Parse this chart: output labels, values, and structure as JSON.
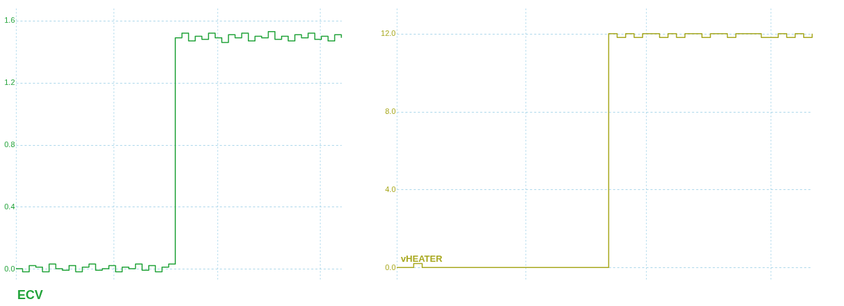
{
  "chart_data": [
    {
      "type": "step",
      "categories": [
        null,
        null,
        null,
        null,
        null,
        null,
        null,
        null,
        null,
        null,
        null,
        null,
        null,
        null,
        null,
        null,
        null,
        null,
        null,
        null,
        null,
        null,
        null,
        null,
        null,
        null,
        null,
        null,
        null,
        null,
        null,
        null,
        null,
        null,
        null,
        null,
        null,
        null,
        null,
        null,
        null,
        null,
        null,
        null,
        null,
        null,
        null,
        null,
        null,
        null
      ],
      "series": [
        {
          "name": "ECV",
          "color": "#22a33a",
          "values": [
            0.0,
            -0.02,
            0.02,
            0.01,
            -0.02,
            0.03,
            0.0,
            -0.01,
            0.02,
            -0.02,
            0.01,
            0.03,
            -0.01,
            0.0,
            0.02,
            -0.02,
            0.01,
            0.0,
            0.03,
            -0.01,
            0.02,
            -0.02,
            0.01,
            0.03,
            1.49,
            1.52,
            1.47,
            1.5,
            1.48,
            1.52,
            1.49,
            1.46,
            1.51,
            1.49,
            1.52,
            1.47,
            1.5,
            1.49,
            1.53,
            1.48,
            1.5,
            1.47,
            1.51,
            1.49,
            1.52,
            1.48,
            1.5,
            1.47,
            1.51,
            1.49
          ]
        }
      ],
      "ylim": [
        -0.08,
        1.68
      ],
      "yticks": [
        {
          "value": 0,
          "label": "0.0"
        },
        0.4,
        0.8,
        1.2,
        1.6
      ],
      "grid": true,
      "tick_labels": "y"
    },
    {
      "type": "step",
      "categories": [
        null,
        null,
        null,
        null,
        null,
        null,
        null,
        null,
        null,
        null,
        null,
        null,
        null,
        null,
        null,
        null,
        null,
        null,
        null,
        null,
        null,
        null,
        null,
        null,
        null,
        null,
        null,
        null,
        null,
        null,
        null,
        null,
        null,
        null,
        null,
        null,
        null,
        null,
        null,
        null,
        null,
        null,
        null,
        null,
        null,
        null,
        null,
        null,
        null,
        null
      ],
      "series": [
        {
          "name": "vHEATER",
          "color": "#a8a81e",
          "values": [
            0.0,
            0.0,
            0.2,
            0.0,
            0.0,
            0.0,
            0.0,
            0.0,
            0.0,
            0.0,
            0.0,
            0.0,
            0.0,
            0.0,
            0.0,
            0.0,
            0.0,
            0.0,
            0.0,
            0.0,
            0.0,
            0.0,
            0.0,
            0.0,
            0.0,
            12.0,
            11.8,
            12.0,
            11.8,
            12.0,
            12.0,
            11.8,
            12.0,
            11.8,
            12.0,
            12.0,
            11.8,
            12.0,
            12.0,
            11.8,
            12.0,
            12.0,
            12.0,
            11.8,
            11.8,
            12.0,
            11.8,
            12.0,
            11.8,
            12.0
          ]
        }
      ],
      "ylim": [
        -0.7,
        13.3
      ],
      "yticks": [
        {
          "value": 0,
          "label": "0.0"
        },
        {
          "value": 4,
          "label": "4.0"
        },
        {
          "value": 8,
          "label": "8.0"
        },
        {
          "value": 12,
          "label": "12.0"
        }
      ],
      "grid": true,
      "tick_labels": "y"
    }
  ]
}
